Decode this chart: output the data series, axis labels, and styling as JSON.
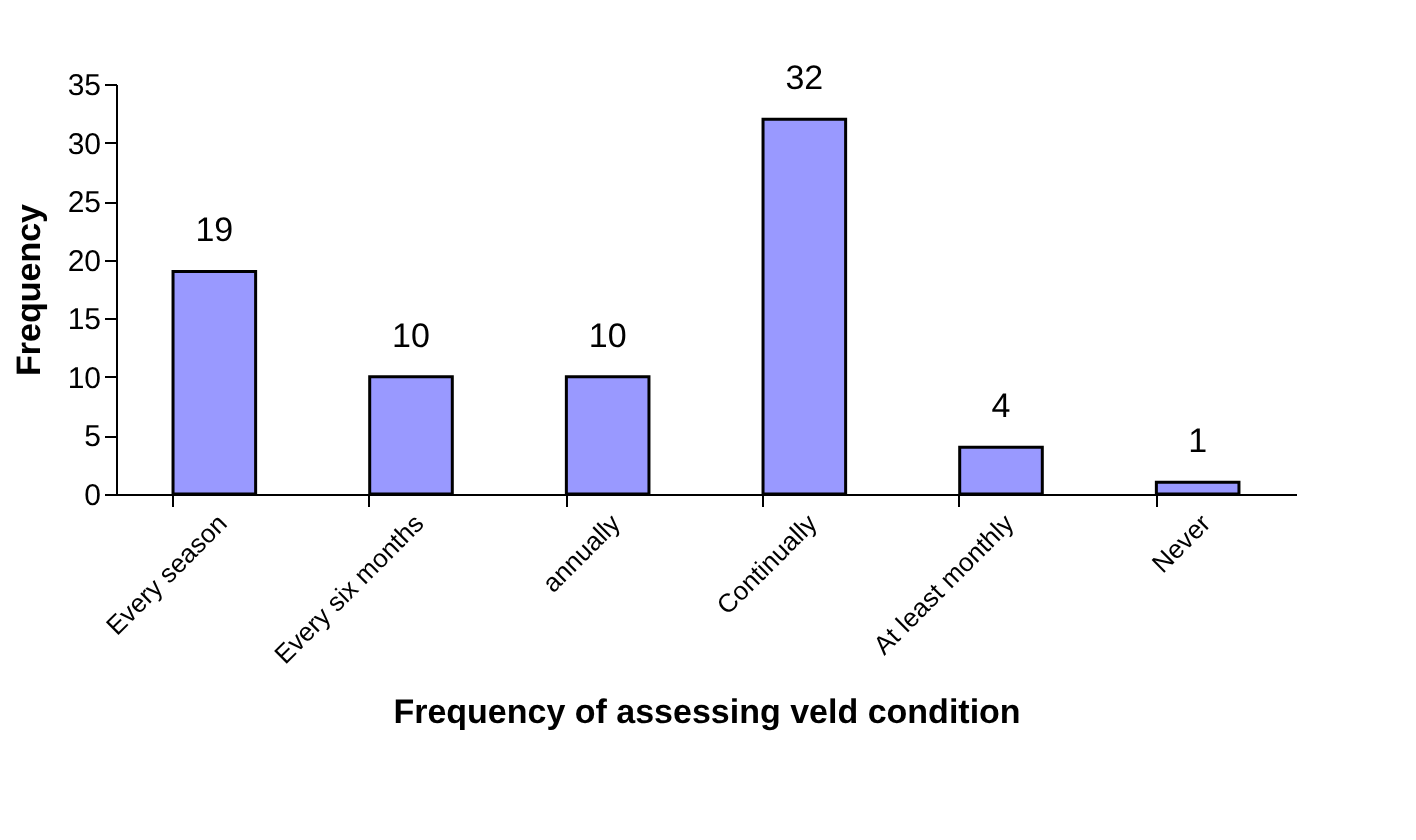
{
  "chart_data": {
    "type": "bar",
    "xlabel": "Frequency of assessing veld condition",
    "ylabel": "Frequency",
    "categories": [
      "Every season",
      "Every six months",
      "annually",
      "Continually",
      "At least monthly",
      "Never"
    ],
    "values": [
      19,
      10,
      10,
      32,
      4,
      1
    ],
    "color": "#9999ff",
    "ylim": [
      0,
      35
    ],
    "yticks": [
      0,
      5,
      10,
      15,
      20,
      25,
      30,
      35
    ],
    "grid": false,
    "data_labels": true
  }
}
